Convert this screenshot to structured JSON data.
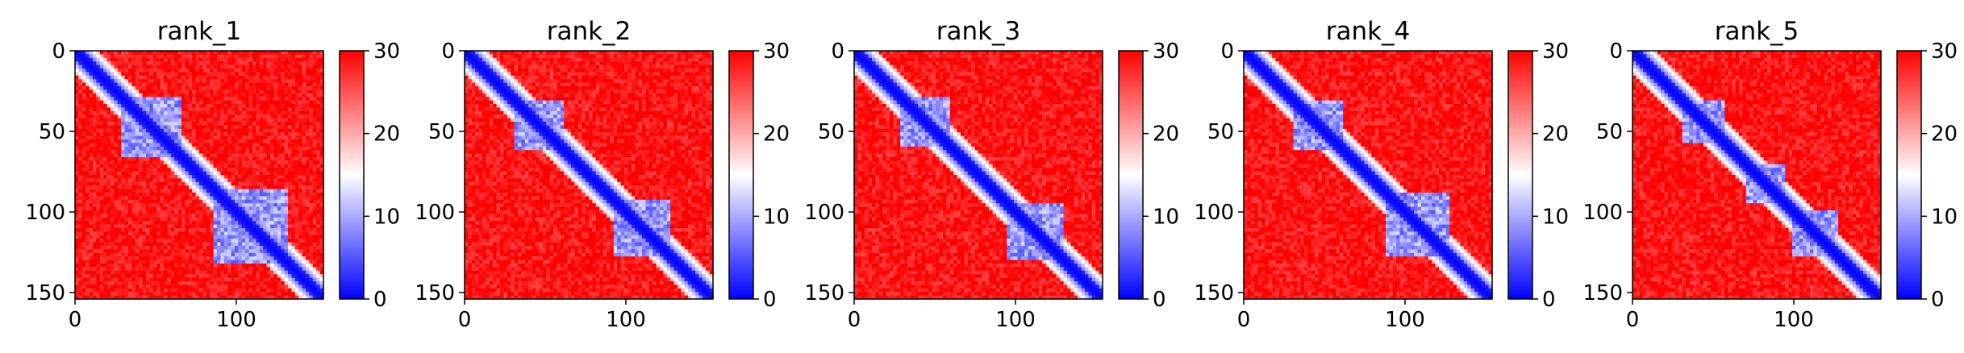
{
  "chart_data": [
    {
      "type": "heatmap",
      "title": "rank_1",
      "xlabel": "",
      "ylabel": "",
      "x_ticks": [
        0,
        100
      ],
      "y_ticks": [
        0,
        50,
        100,
        150
      ],
      "xlim": [
        0,
        154
      ],
      "ylim": [
        154,
        0
      ],
      "colorbar": {
        "ticks": [
          0,
          10,
          20,
          30
        ],
        "range": [
          0,
          30
        ],
        "colors": [
          "#0000ff",
          "#ffffff",
          "#ff0000"
        ]
      },
      "blocks": [
        [
          28,
          65
        ],
        [
          85,
          132
        ]
      ],
      "diagonal_width": 5
    },
    {
      "type": "heatmap",
      "title": "rank_2",
      "xlabel": "",
      "ylabel": "",
      "x_ticks": [
        0,
        100
      ],
      "y_ticks": [
        0,
        50,
        100,
        150
      ],
      "xlim": [
        0,
        154
      ],
      "ylim": [
        154,
        0
      ],
      "colorbar": {
        "ticks": [
          0,
          10,
          20,
          30
        ],
        "range": [
          0,
          30
        ],
        "colors": [
          "#0000ff",
          "#ffffff",
          "#ff0000"
        ]
      },
      "blocks": [
        [
          30,
          62
        ],
        [
          92,
          128
        ]
      ],
      "diagonal_width": 5
    },
    {
      "type": "heatmap",
      "title": "rank_3",
      "xlabel": "",
      "ylabel": "",
      "x_ticks": [
        0,
        100
      ],
      "y_ticks": [
        0,
        50,
        100,
        150
      ],
      "xlim": [
        0,
        154
      ],
      "ylim": [
        154,
        0
      ],
      "colorbar": {
        "ticks": [
          0,
          10,
          20,
          30
        ],
        "range": [
          0,
          30
        ],
        "colors": [
          "#0000ff",
          "#ffffff",
          "#ff0000"
        ]
      },
      "blocks": [
        [
          28,
          60
        ],
        [
          95,
          130
        ]
      ],
      "diagonal_width": 5
    },
    {
      "type": "heatmap",
      "title": "rank_4",
      "xlabel": "",
      "ylabel": "",
      "x_ticks": [
        0,
        100
      ],
      "y_ticks": [
        0,
        50,
        100,
        150
      ],
      "xlim": [
        0,
        154
      ],
      "ylim": [
        154,
        0
      ],
      "colorbar": {
        "ticks": [
          0,
          10,
          20,
          30
        ],
        "range": [
          0,
          30
        ],
        "colors": [
          "#0000ff",
          "#ffffff",
          "#ff0000"
        ]
      },
      "blocks": [
        [
          30,
          62
        ],
        [
          88,
          128
        ]
      ],
      "diagonal_width": 5
    },
    {
      "type": "heatmap",
      "title": "rank_5",
      "xlabel": "",
      "ylabel": "",
      "x_ticks": [
        0,
        100
      ],
      "y_ticks": [
        0,
        50,
        100,
        150
      ],
      "xlim": [
        0,
        154
      ],
      "ylim": [
        154,
        0
      ],
      "colorbar": {
        "ticks": [
          0,
          10,
          20,
          30
        ],
        "range": [
          0,
          30
        ],
        "colors": [
          "#0000ff",
          "#ffffff",
          "#ff0000"
        ]
      },
      "blocks": [
        [
          30,
          58
        ],
        [
          70,
          95
        ],
        [
          100,
          128
        ]
      ],
      "diagonal_width": 5
    }
  ]
}
